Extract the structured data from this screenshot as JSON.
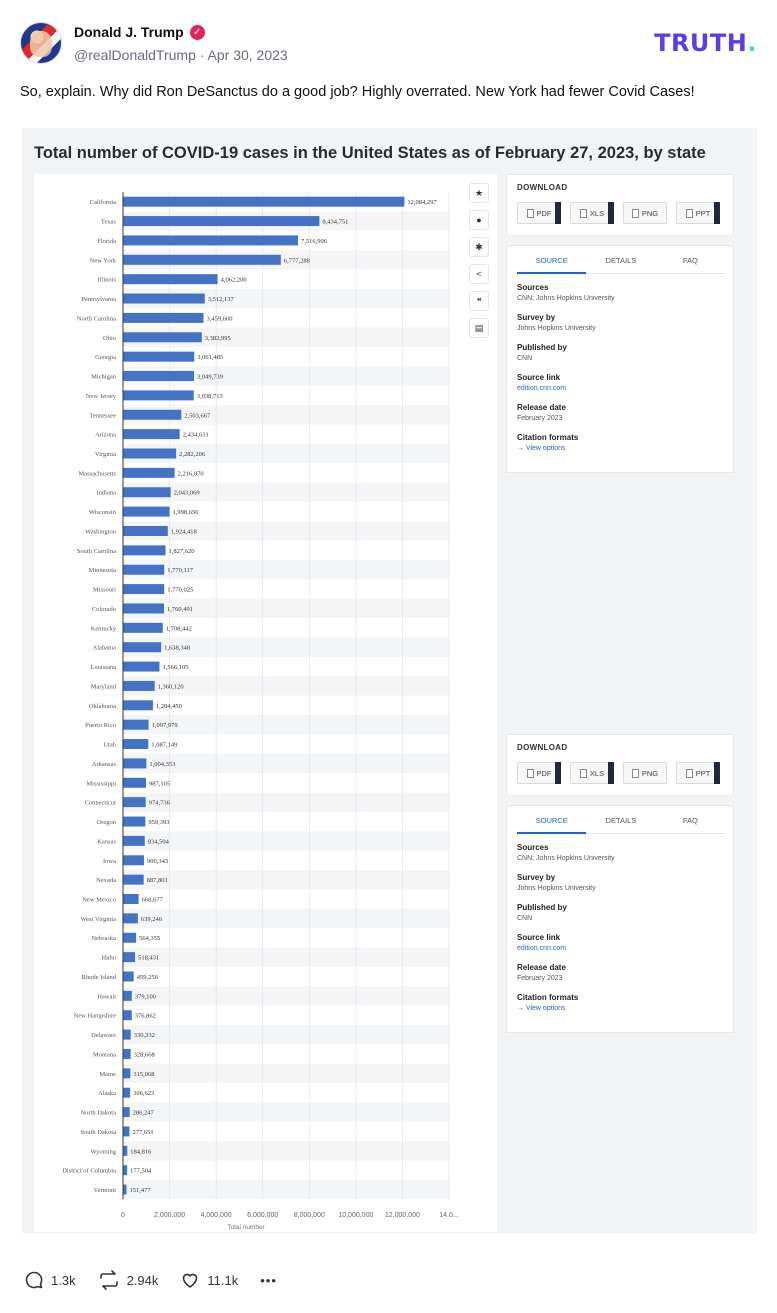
{
  "post": {
    "author_name": "Donald J. Trump",
    "handle": "@realDonaldTrump",
    "separator": " · ",
    "date": "Apr 30, 2023",
    "brand": "TRUTH",
    "brand_dot": ".",
    "text": "So, explain. Why did Ron DeSanctus do a good job? Highly overrated. New York had fewer Covid Cases!"
  },
  "image": {
    "title": "Total number of COVID-19 cases in the United States as of February 27, 2023, by state",
    "tools": [
      "star-icon",
      "bell-icon",
      "gear-icon",
      "share-icon",
      "quote-icon",
      "print-icon"
    ],
    "download": {
      "title": "DOWNLOAD",
      "buttons": [
        "PDF",
        "XLS",
        "PNG",
        "PPT"
      ]
    },
    "info_panel": {
      "tabs": [
        "SOURCE",
        "DETAILS",
        "FAQ"
      ],
      "items": [
        {
          "label": "Sources",
          "value": "CNN; Johns Hopkins University"
        },
        {
          "label": "Survey by",
          "value": "Johns Hopkins University"
        },
        {
          "label": "Published by",
          "value": "CNN"
        },
        {
          "label": "Source link",
          "value": "edition.cnn.com"
        },
        {
          "label": "Release date",
          "value": "February 2023"
        },
        {
          "label": "Citation formats",
          "value": "→ View options"
        }
      ]
    }
  },
  "chart_data": {
    "type": "bar",
    "orientation": "horizontal",
    "xlabel": "Total number",
    "xlim": [
      0,
      14000000
    ],
    "x_ticks": [
      "0",
      "2,000,000",
      "4,000,000",
      "6,000,000",
      "8,000,000",
      "10,000,000",
      "12,000,000",
      "14,0..."
    ],
    "bar_color": "#4472c4",
    "categories": [
      "California",
      "Texas",
      "Florida",
      "New York",
      "Illinois",
      "Pennsylvania",
      "North Carolina",
      "Ohio",
      "Georgia",
      "Michigan",
      "New Jersey",
      "Tennessee",
      "Arizona",
      "Virginia",
      "Massachusetts",
      "Indiana",
      "Wisconsin",
      "Washington",
      "South Carolina",
      "Minnesota",
      "Missouri",
      "Colorado",
      "Kentucky",
      "Alabama",
      "Louisiana",
      "Maryland",
      "Oklahoma",
      "Puerto Rico",
      "Utah",
      "Arkansas",
      "Mississippi",
      "Connecticut",
      "Oregon",
      "Kansas",
      "Iowa",
      "Nevada",
      "New Mexico",
      "West Virginia",
      "Nebraska",
      "Idaho",
      "Rhode Island",
      "Hawaii",
      "New Hampshire",
      "Delaware",
      "Montana",
      "Maine",
      "Alaska",
      "North Dakota",
      "South Dakota",
      "Wyoming",
      "District of Columbia",
      "Vermont"
    ],
    "values": [
      12084297,
      8434751,
      7516906,
      6777288,
      4062200,
      3512137,
      3459600,
      3382995,
      3061485,
      3049739,
      3038713,
      2503667,
      2434631,
      2282206,
      2216870,
      2043069,
      1998656,
      1924418,
      1827620,
      1770117,
      1770025,
      1760491,
      1708442,
      1638348,
      1566105,
      1360120,
      1284450,
      1097979,
      1087149,
      1004353,
      987105,
      974736,
      959393,
      934504,
      900343,
      887801,
      668677,
      639246,
      564355,
      518431,
      459256,
      379100,
      376862,
      330332,
      328668,
      315068,
      306623,
      286247,
      277651,
      184816,
      177504,
      151477
    ],
    "labels": [
      "12,084,297",
      "8,434,751",
      "7,516,906",
      "6,777,288",
      "4,062,200",
      "3,512,137",
      "3,459,600",
      "3,382,995",
      "3,061,485",
      "3,049,739",
      "3,038,713",
      "2,503,667",
      "2,434,631",
      "2,282,206",
      "2,216,870",
      "2,043,069",
      "1,998,656",
      "1,924,418",
      "1,827,620",
      "1,770,117",
      "1,770,025",
      "1,760,491",
      "1,708,442",
      "1,638,348",
      "1,566,105",
      "1,360,120",
      "1,284,450",
      "1,097,979",
      "1,087,149",
      "1,004,353",
      "987,105",
      "974,736",
      "959,393",
      "934,504",
      "900,343",
      "887,801",
      "668,677",
      "639,246",
      "564,355",
      "518,431",
      "459,256",
      "379,100",
      "376,862",
      "330,332",
      "328,668",
      "315,068",
      "306,623",
      "286,247",
      "277,651",
      "184,816",
      "177,504",
      "151,477"
    ]
  },
  "actions": {
    "replies": "1.3k",
    "retruths": "2.94k",
    "likes": "11.1k",
    "more": "•••"
  }
}
